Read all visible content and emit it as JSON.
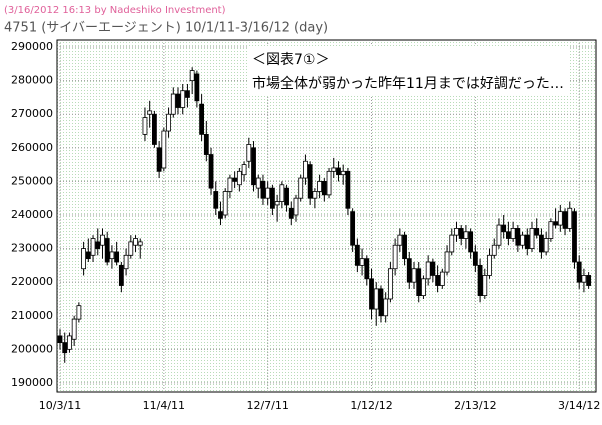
{
  "chart_data": {
    "type": "candlestick",
    "watermark": "(3/16/2012 16:13 by Nadeshiko Investment)",
    "title": "4751 (サイバーエージェント)  10/1/11-3/16/12 (day)",
    "annotation": [
      "＜図表7①＞",
      "市場全体が弱かった昨年11月までは好調だった…"
    ],
    "ylim": [
      187300,
      292100
    ],
    "yticks": [
      190000,
      200000,
      210000,
      220000,
      230000,
      240000,
      250000,
      260000,
      270000,
      280000,
      290000
    ],
    "grid": true,
    "up_color": "#ffffff",
    "down_color": "#000000",
    "categories": [
      "10/3/11",
      null,
      null,
      null,
      null,
      null,
      null,
      null,
      null,
      null,
      null,
      null,
      null,
      null,
      null,
      null,
      null,
      null,
      null,
      null,
      null,
      null,
      "11/4/11",
      null,
      null,
      null,
      null,
      null,
      null,
      null,
      null,
      null,
      null,
      null,
      null,
      null,
      null,
      null,
      null,
      null,
      null,
      null,
      null,
      null,
      "12/7/11",
      null,
      null,
      null,
      null,
      null,
      null,
      null,
      null,
      null,
      null,
      null,
      null,
      null,
      null,
      null,
      null,
      null,
      null,
      null,
      null,
      null,
      "1/12/12",
      null,
      null,
      null,
      null,
      null,
      null,
      null,
      null,
      null,
      null,
      null,
      null,
      null,
      null,
      null,
      null,
      null,
      null,
      null,
      null,
      null,
      "2/13/12",
      null,
      null,
      null,
      null,
      null,
      null,
      null,
      null,
      null,
      null,
      null,
      null,
      null,
      null,
      null,
      null,
      null,
      null,
      null,
      null,
      null,
      "3/14/12",
      null,
      null
    ],
    "candles": [
      [
        204000,
        206000,
        200000,
        202000
      ],
      [
        202000,
        205000,
        196000,
        199000
      ],
      [
        200000,
        205000,
        199000,
        204000
      ],
      [
        203000,
        210000,
        201000,
        209000
      ],
      [
        209000,
        214000,
        208000,
        213000
      ],
      [
        224000,
        232000,
        222000,
        230000
      ],
      [
        229000,
        233000,
        226000,
        227000
      ],
      [
        228000,
        234000,
        226000,
        233000
      ],
      [
        232000,
        236000,
        228000,
        230000
      ],
      [
        231000,
        236000,
        227000,
        234000
      ],
      [
        233000,
        235000,
        225000,
        226000
      ],
      [
        227000,
        231000,
        224000,
        229000
      ],
      [
        229000,
        232000,
        225000,
        226000
      ],
      [
        225000,
        226000,
        217000,
        219000
      ],
      [
        224000,
        230000,
        222000,
        228000
      ],
      [
        228000,
        234000,
        227000,
        232000
      ],
      [
        231000,
        234000,
        229000,
        233000
      ],
      [
        231000,
        233000,
        227000,
        232000
      ],
      [
        264000,
        272000,
        262000,
        269000
      ],
      [
        270000,
        274000,
        266000,
        271000
      ],
      [
        270000,
        271000,
        260000,
        261000
      ],
      [
        260000,
        262000,
        251000,
        253000
      ],
      [
        254000,
        266000,
        253000,
        265000
      ],
      [
        265000,
        272000,
        263000,
        270000
      ],
      [
        270000,
        278000,
        269000,
        276000
      ],
      [
        276000,
        278000,
        270000,
        272000
      ],
      [
        272000,
        279000,
        270000,
        277000
      ],
      [
        277000,
        279000,
        272000,
        275000
      ],
      [
        280000,
        284000,
        276000,
        283000
      ],
      [
        282000,
        283000,
        272000,
        274000
      ],
      [
        273000,
        276000,
        262000,
        264000
      ],
      [
        264000,
        268000,
        256000,
        258000
      ],
      [
        258000,
        260000,
        246000,
        248000
      ],
      [
        247000,
        250000,
        240000,
        242000
      ],
      [
        241000,
        244000,
        237000,
        239000
      ],
      [
        240000,
        248000,
        239000,
        247000
      ],
      [
        247000,
        252000,
        245000,
        251000
      ],
      [
        251000,
        253000,
        248000,
        250000
      ],
      [
        249000,
        254000,
        247000,
        253000
      ],
      [
        252000,
        256000,
        250000,
        255000
      ],
      [
        256000,
        263000,
        254000,
        261000
      ],
      [
        260000,
        262000,
        247000,
        249000
      ],
      [
        248000,
        252000,
        245000,
        251000
      ],
      [
        250000,
        252000,
        243000,
        245000
      ],
      [
        245000,
        250000,
        243000,
        248000
      ],
      [
        248000,
        249000,
        240000,
        242000
      ],
      [
        243000,
        246000,
        238000,
        244000
      ],
      [
        244000,
        250000,
        242000,
        249000
      ],
      [
        248000,
        249000,
        241000,
        243000
      ],
      [
        242000,
        244000,
        237000,
        239000
      ],
      [
        240000,
        246000,
        238000,
        245000
      ],
      [
        245000,
        252000,
        244000,
        251000
      ],
      [
        251000,
        258000,
        249000,
        256000
      ],
      [
        255000,
        256000,
        243000,
        245000
      ],
      [
        245000,
        248000,
        242000,
        247000
      ],
      [
        247000,
        252000,
        245000,
        250000
      ],
      [
        250000,
        251000,
        244000,
        246000
      ],
      [
        246000,
        254000,
        245000,
        253000
      ],
      [
        253000,
        257000,
        251000,
        254000
      ],
      [
        254000,
        256000,
        250000,
        252000
      ],
      [
        252000,
        255000,
        249000,
        253000
      ],
      [
        253000,
        254000,
        240000,
        242000
      ],
      [
        241000,
        242000,
        229000,
        231000
      ],
      [
        231000,
        233000,
        223000,
        225000
      ],
      [
        225000,
        230000,
        222000,
        227000
      ],
      [
        227000,
        228000,
        219000,
        221000
      ],
      [
        221000,
        224000,
        209000,
        212000
      ],
      [
        212000,
        220000,
        207000,
        218000
      ],
      [
        218000,
        219000,
        208000,
        210000
      ],
      [
        210000,
        217000,
        208000,
        215000
      ],
      [
        215000,
        226000,
        214000,
        224000
      ],
      [
        224000,
        233000,
        222000,
        231000
      ],
      [
        231000,
        236000,
        229000,
        234000
      ],
      [
        234000,
        235000,
        225000,
        227000
      ],
      [
        227000,
        229000,
        218000,
        220000
      ],
      [
        220000,
        226000,
        218000,
        224000
      ],
      [
        224000,
        226000,
        214000,
        216000
      ],
      [
        216000,
        222000,
        215000,
        221000
      ],
      [
        221000,
        228000,
        219000,
        226000
      ],
      [
        226000,
        227000,
        220000,
        222000
      ],
      [
        222000,
        225000,
        217000,
        219000
      ],
      [
        219000,
        224000,
        218000,
        223000
      ],
      [
        223000,
        231000,
        222000,
        229000
      ],
      [
        229000,
        236000,
        228000,
        234000
      ],
      [
        234000,
        238000,
        232000,
        236000
      ],
      [
        236000,
        237000,
        231000,
        233000
      ],
      [
        233000,
        237000,
        230000,
        235000
      ],
      [
        235000,
        236000,
        227000,
        229000
      ],
      [
        229000,
        231000,
        223000,
        225000
      ],
      [
        225000,
        227000,
        214000,
        216000
      ],
      [
        216000,
        224000,
        215000,
        222000
      ],
      [
        222000,
        230000,
        221000,
        228000
      ],
      [
        228000,
        233000,
        227000,
        231000
      ],
      [
        231000,
        239000,
        230000,
        237000
      ],
      [
        237000,
        240000,
        233000,
        235000
      ],
      [
        235000,
        238000,
        231000,
        233000
      ],
      [
        233000,
        238000,
        232000,
        236000
      ],
      [
        236000,
        237000,
        229000,
        231000
      ],
      [
        231000,
        235000,
        230000,
        234000
      ],
      [
        234000,
        236000,
        228000,
        230000
      ],
      [
        230000,
        238000,
        229000,
        236000
      ],
      [
        236000,
        239000,
        233000,
        234000
      ],
      [
        234000,
        236000,
        227000,
        229000
      ],
      [
        229000,
        235000,
        228000,
        233000
      ],
      [
        233000,
        239000,
        232000,
        238000
      ],
      [
        238000,
        242000,
        236000,
        237000
      ],
      [
        237000,
        243000,
        235000,
        241000
      ],
      [
        241000,
        242000,
        234000,
        236000
      ],
      [
        236000,
        244000,
        235000,
        242000
      ],
      [
        241000,
        242000,
        224000,
        226000
      ],
      [
        226000,
        228000,
        218000,
        220000
      ],
      [
        220000,
        224000,
        217000,
        222000
      ],
      [
        222000,
        223000,
        218000,
        219000
      ]
    ]
  }
}
